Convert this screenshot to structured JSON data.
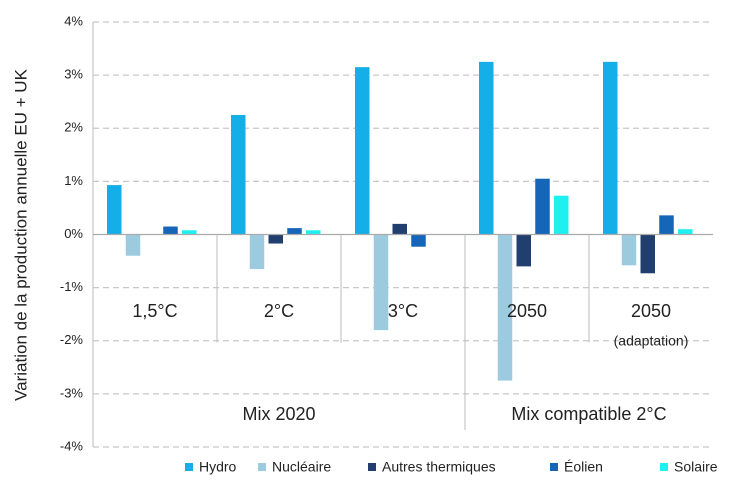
{
  "chart_data": {
    "type": "bar",
    "y_label": "Variation de la production annuelle EU + UK",
    "categories": [
      "1,5°C",
      "2°C",
      "3°C",
      "2050",
      "2050"
    ],
    "category_notes": [
      null,
      null,
      null,
      null,
      "(adaptation)"
    ],
    "groups": [
      {
        "label": "Mix 2020",
        "size": 3
      },
      {
        "label": "Mix compatible 2°C",
        "size": 2
      }
    ],
    "series": [
      {
        "name": "Hydro",
        "color": "#14aee8",
        "values": [
          0.93,
          2.25,
          3.15,
          3.25,
          3.25
        ]
      },
      {
        "name": "Nucléaire",
        "color": "#9ccbdf",
        "values": [
          -0.4,
          -0.65,
          -1.8,
          -2.75,
          -0.58
        ]
      },
      {
        "name": "Autres thermiques",
        "color": "#203f6e",
        "values": [
          0,
          -0.17,
          0.2,
          -0.6,
          -0.73
        ]
      },
      {
        "name": "Éolien",
        "color": "#1565b8",
        "values": [
          0.15,
          0.12,
          -0.23,
          1.05,
          0.36
        ]
      },
      {
        "name": "Solaire",
        "color": "#1ef0f0",
        "values": [
          0.08,
          0.08,
          0,
          0.73,
          0.1
        ]
      }
    ],
    "ylim": [
      -4,
      4
    ],
    "yticks": [
      {
        "value": 4,
        "label": "4%"
      },
      {
        "value": 3,
        "label": "3%"
      },
      {
        "value": 2,
        "label": "2%"
      },
      {
        "value": 1,
        "label": "1%"
      },
      {
        "value": 0,
        "label": "0%"
      },
      {
        "value": -1,
        "label": "-1%"
      },
      {
        "value": -2,
        "label": "-2%"
      },
      {
        "value": -3,
        "label": "-3%"
      },
      {
        "value": -4,
        "label": "-4%"
      }
    ],
    "grid": true,
    "legend": "bottom"
  }
}
